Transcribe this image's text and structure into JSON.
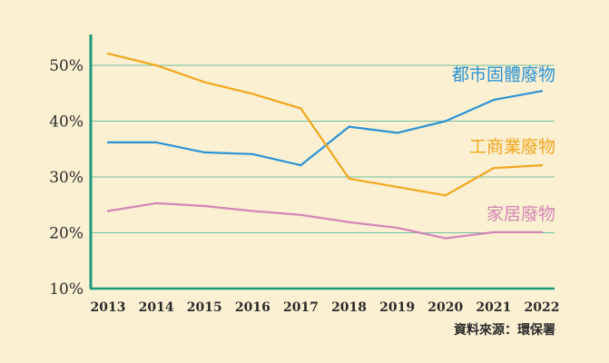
{
  "chart_data": {
    "type": "line",
    "title": "",
    "xlabel": "",
    "ylabel": "",
    "x": [
      "2013",
      "2014",
      "2015",
      "2016",
      "2017",
      "2018",
      "2019",
      "2020",
      "2021",
      "2022"
    ],
    "yticks": [
      "10%",
      "20%",
      "30%",
      "40%",
      "50%"
    ],
    "ylim": [
      10,
      55
    ],
    "grid": true,
    "legend": "inline-right",
    "series": [
      {
        "name": "都市固體廢物",
        "color": "#2a93d5",
        "values": [
          36.2,
          36.2,
          34.4,
          34.1,
          32.1,
          39.0,
          37.9,
          40.0,
          43.8,
          45.4
        ]
      },
      {
        "name": "工商業廢物",
        "color": "#f2a61c",
        "values": [
          52.1,
          50.0,
          47.0,
          44.9,
          42.3,
          29.7,
          28.2,
          26.7,
          31.6,
          32.1
        ]
      },
      {
        "name": "家居廢物",
        "color": "#d484b6",
        "values": [
          23.9,
          25.3,
          24.8,
          23.9,
          23.2,
          21.9,
          20.9,
          19.0,
          20.1,
          20.1
        ]
      }
    ],
    "source": "資料來源：環保署"
  },
  "colors": {
    "background": "#fbf0d2",
    "axis": "#1a9a7a",
    "grid": "#6fbf9f"
  }
}
